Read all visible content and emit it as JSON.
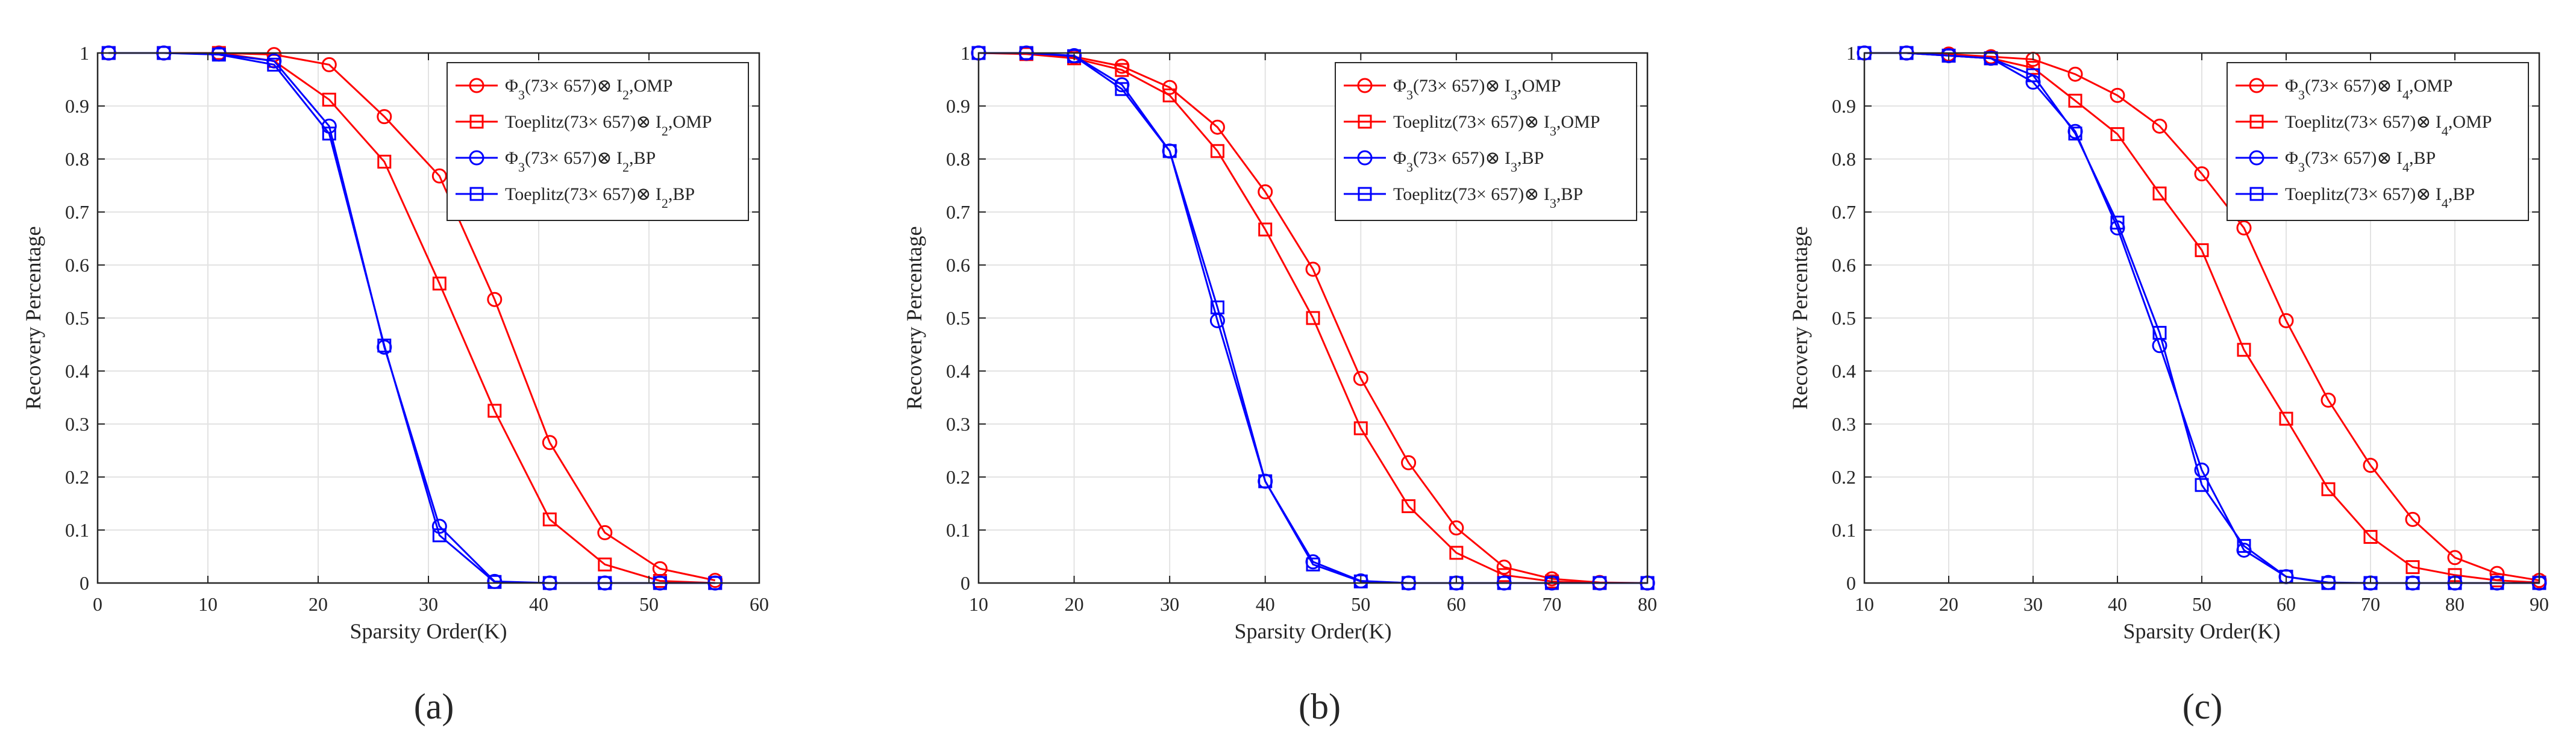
{
  "figure": {
    "panel_captions": [
      "(a)",
      "(b)",
      "(c)"
    ]
  },
  "colors": {
    "omp": "#ff0000",
    "bp": "#0000ff",
    "grid": "#e3e3e3",
    "axis": "#262626"
  },
  "chart_data": [
    {
      "type": "line",
      "panel": "(a)",
      "xlabel": "Sparsity Order(K)",
      "ylabel": "Recovery Percentage",
      "xlim": [
        0,
        60
      ],
      "ylim": [
        0,
        1
      ],
      "xticks": [
        0,
        10,
        20,
        30,
        40,
        50,
        60
      ],
      "yticks": [
        0,
        0.1,
        0.2,
        0.3,
        0.4,
        0.5,
        0.6,
        0.7,
        0.8,
        0.9,
        1
      ],
      "grid": true,
      "legend_position": "top-right",
      "x": [
        1,
        6,
        11,
        16,
        21,
        26,
        31,
        36,
        41,
        46,
        51,
        56
      ],
      "series": [
        {
          "name": "Φ3(73× 657)⊗ I2,OMP",
          "legend": {
            "main": "Φ",
            "sub1": "3",
            "mid": "(73× 657)⊗ I",
            "sub2": "2",
            "end": ",OMP"
          },
          "color": "omp",
          "marker": "circle",
          "values": [
            1,
            1,
            1,
            0.997,
            0.978,
            0.88,
            0.768,
            0.535,
            0.265,
            0.095,
            0.027,
            0.005
          ]
        },
        {
          "name": "Toeplitz(73× 657)⊗ I2,OMP",
          "legend": {
            "main": "Toeplitz",
            "sub1": "",
            "mid": "(73× 657)⊗ I",
            "sub2": "2",
            "end": ",OMP"
          },
          "color": "omp",
          "marker": "square",
          "values": [
            1,
            1,
            1,
            0.985,
            0.912,
            0.795,
            0.565,
            0.325,
            0.12,
            0.035,
            0.004,
            0
          ]
        },
        {
          "name": "Φ3(73× 657)⊗ I2,BP",
          "legend": {
            "main": "Φ",
            "sub1": "3",
            "mid": "(73× 657)⊗ I",
            "sub2": "2",
            "end": ",BP"
          },
          "color": "bp",
          "marker": "circle",
          "values": [
            1,
            1,
            0.998,
            0.985,
            0.862,
            0.445,
            0.107,
            0.003,
            0,
            0,
            0,
            0
          ]
        },
        {
          "name": "Toeplitz(73× 657)⊗ I2,BP",
          "legend": {
            "main": "Toeplitz",
            "sub1": "",
            "mid": "(73× 657)⊗ I",
            "sub2": "2",
            "end": ",BP"
          },
          "color": "bp",
          "marker": "square",
          "values": [
            1,
            1,
            0.997,
            0.978,
            0.848,
            0.448,
            0.09,
            0.002,
            0,
            0,
            0,
            0
          ]
        }
      ]
    },
    {
      "type": "line",
      "panel": "(b)",
      "xlabel": "Sparsity Order(K)",
      "ylabel": "Recovery Percentage",
      "xlim": [
        10,
        80
      ],
      "ylim": [
        0,
        1
      ],
      "xticks": [
        10,
        20,
        30,
        40,
        50,
        60,
        70,
        80
      ],
      "yticks": [
        0,
        0.1,
        0.2,
        0.3,
        0.4,
        0.5,
        0.6,
        0.7,
        0.8,
        0.9,
        1
      ],
      "grid": true,
      "legend_position": "top-right",
      "x": [
        10,
        15,
        20,
        25,
        30,
        35,
        40,
        45,
        50,
        55,
        60,
        65,
        70,
        75,
        80
      ],
      "series": [
        {
          "name": "Φ3(73× 657)⊗ I3,OMP",
          "legend": {
            "main": "Φ",
            "sub1": "3",
            "mid": "(73× 657)⊗ I",
            "sub2": "3",
            "end": ",OMP"
          },
          "color": "omp",
          "marker": "circle",
          "values": [
            1,
            0.999,
            0.993,
            0.975,
            0.935,
            0.86,
            0.738,
            0.592,
            0.386,
            0.227,
            0.104,
            0.03,
            0.008,
            0.001,
            0
          ]
        },
        {
          "name": "Toeplitz(73× 657)⊗ I3,OMP",
          "legend": {
            "main": "Toeplitz",
            "sub1": "",
            "mid": "(73× 657)⊗ I",
            "sub2": "3",
            "end": ",OMP"
          },
          "color": "omp",
          "marker": "square",
          "values": [
            1,
            0.998,
            0.99,
            0.968,
            0.92,
            0.815,
            0.667,
            0.5,
            0.292,
            0.145,
            0.057,
            0.015,
            0.003,
            0,
            0
          ]
        },
        {
          "name": "Φ3(73× 657)⊗ I3,BP",
          "legend": {
            "main": "Φ",
            "sub1": "3",
            "mid": "(73× 657)⊗ I",
            "sub2": "3",
            "end": ",BP"
          },
          "color": "bp",
          "marker": "circle",
          "values": [
            1,
            1,
            0.995,
            0.94,
            0.815,
            0.495,
            0.192,
            0.04,
            0.004,
            0,
            0,
            0,
            0,
            0,
            0
          ]
        },
        {
          "name": "Toeplitz(73× 657)⊗ I3,BP",
          "legend": {
            "main": "Toeplitz",
            "sub1": "",
            "mid": "(73× 657)⊗ I",
            "sub2": "3",
            "end": ",BP"
          },
          "color": "bp",
          "marker": "square",
          "values": [
            1,
            1,
            0.994,
            0.932,
            0.815,
            0.52,
            0.192,
            0.035,
            0.003,
            0,
            0,
            0,
            0,
            0,
            0
          ]
        }
      ]
    },
    {
      "type": "line",
      "panel": "(c)",
      "xlabel": "Sparsity Order(K)",
      "ylabel": "Recovery Percentage",
      "xlim": [
        10,
        90
      ],
      "ylim": [
        0,
        1
      ],
      "xticks": [
        10,
        20,
        30,
        40,
        50,
        60,
        70,
        80,
        90
      ],
      "yticks": [
        0,
        0.1,
        0.2,
        0.3,
        0.4,
        0.5,
        0.6,
        0.7,
        0.8,
        0.9,
        1
      ],
      "grid": true,
      "legend_position": "top-right",
      "x": [
        10,
        15,
        20,
        25,
        30,
        35,
        40,
        45,
        50,
        55,
        60,
        65,
        70,
        75,
        80,
        85,
        90
      ],
      "series": [
        {
          "name": "Φ3(73× 657)⊗ I4,OMP",
          "legend": {
            "main": "Φ",
            "sub1": "3",
            "mid": "(73× 657)⊗ I",
            "sub2": "4",
            "end": ",OMP"
          },
          "color": "omp",
          "marker": "circle",
          "values": [
            1,
            1,
            0.998,
            0.993,
            0.988,
            0.96,
            0.92,
            0.862,
            0.772,
            0.67,
            0.495,
            0.345,
            0.222,
            0.12,
            0.048,
            0.018,
            0.005
          ]
        },
        {
          "name": "Toeplitz(73× 657)⊗ I4,OMP",
          "legend": {
            "main": "Toeplitz",
            "sub1": "",
            "mid": "(73× 657)⊗ I",
            "sub2": "4",
            "end": ",OMP"
          },
          "color": "omp",
          "marker": "square",
          "values": [
            1,
            1,
            0.995,
            0.99,
            0.972,
            0.91,
            0.847,
            0.735,
            0.628,
            0.44,
            0.31,
            0.177,
            0.087,
            0.03,
            0.015,
            0.005,
            0.001
          ]
        },
        {
          "name": "Φ3(73× 657)⊗ I4,BP",
          "legend": {
            "main": "Φ",
            "sub1": "3",
            "mid": "(73× 657)⊗ I",
            "sub2": "4",
            "end": ",BP"
          },
          "color": "bp",
          "marker": "circle",
          "values": [
            1,
            1,
            0.995,
            0.99,
            0.945,
            0.852,
            0.67,
            0.448,
            0.213,
            0.062,
            0.012,
            0.001,
            0,
            0,
            0,
            0,
            0
          ]
        },
        {
          "name": "Toeplitz(73× 657)⊗ I4,BP",
          "legend": {
            "main": "Toeplitz",
            "sub1": "",
            "mid": "(73× 657)⊗ I",
            "sub2": "4",
            "end": ",BP"
          },
          "color": "bp",
          "marker": "square",
          "values": [
            1,
            1,
            0.995,
            0.99,
            0.958,
            0.848,
            0.68,
            0.472,
            0.185,
            0.07,
            0.012,
            0,
            0,
            0,
            0,
            0,
            0
          ]
        }
      ]
    }
  ]
}
